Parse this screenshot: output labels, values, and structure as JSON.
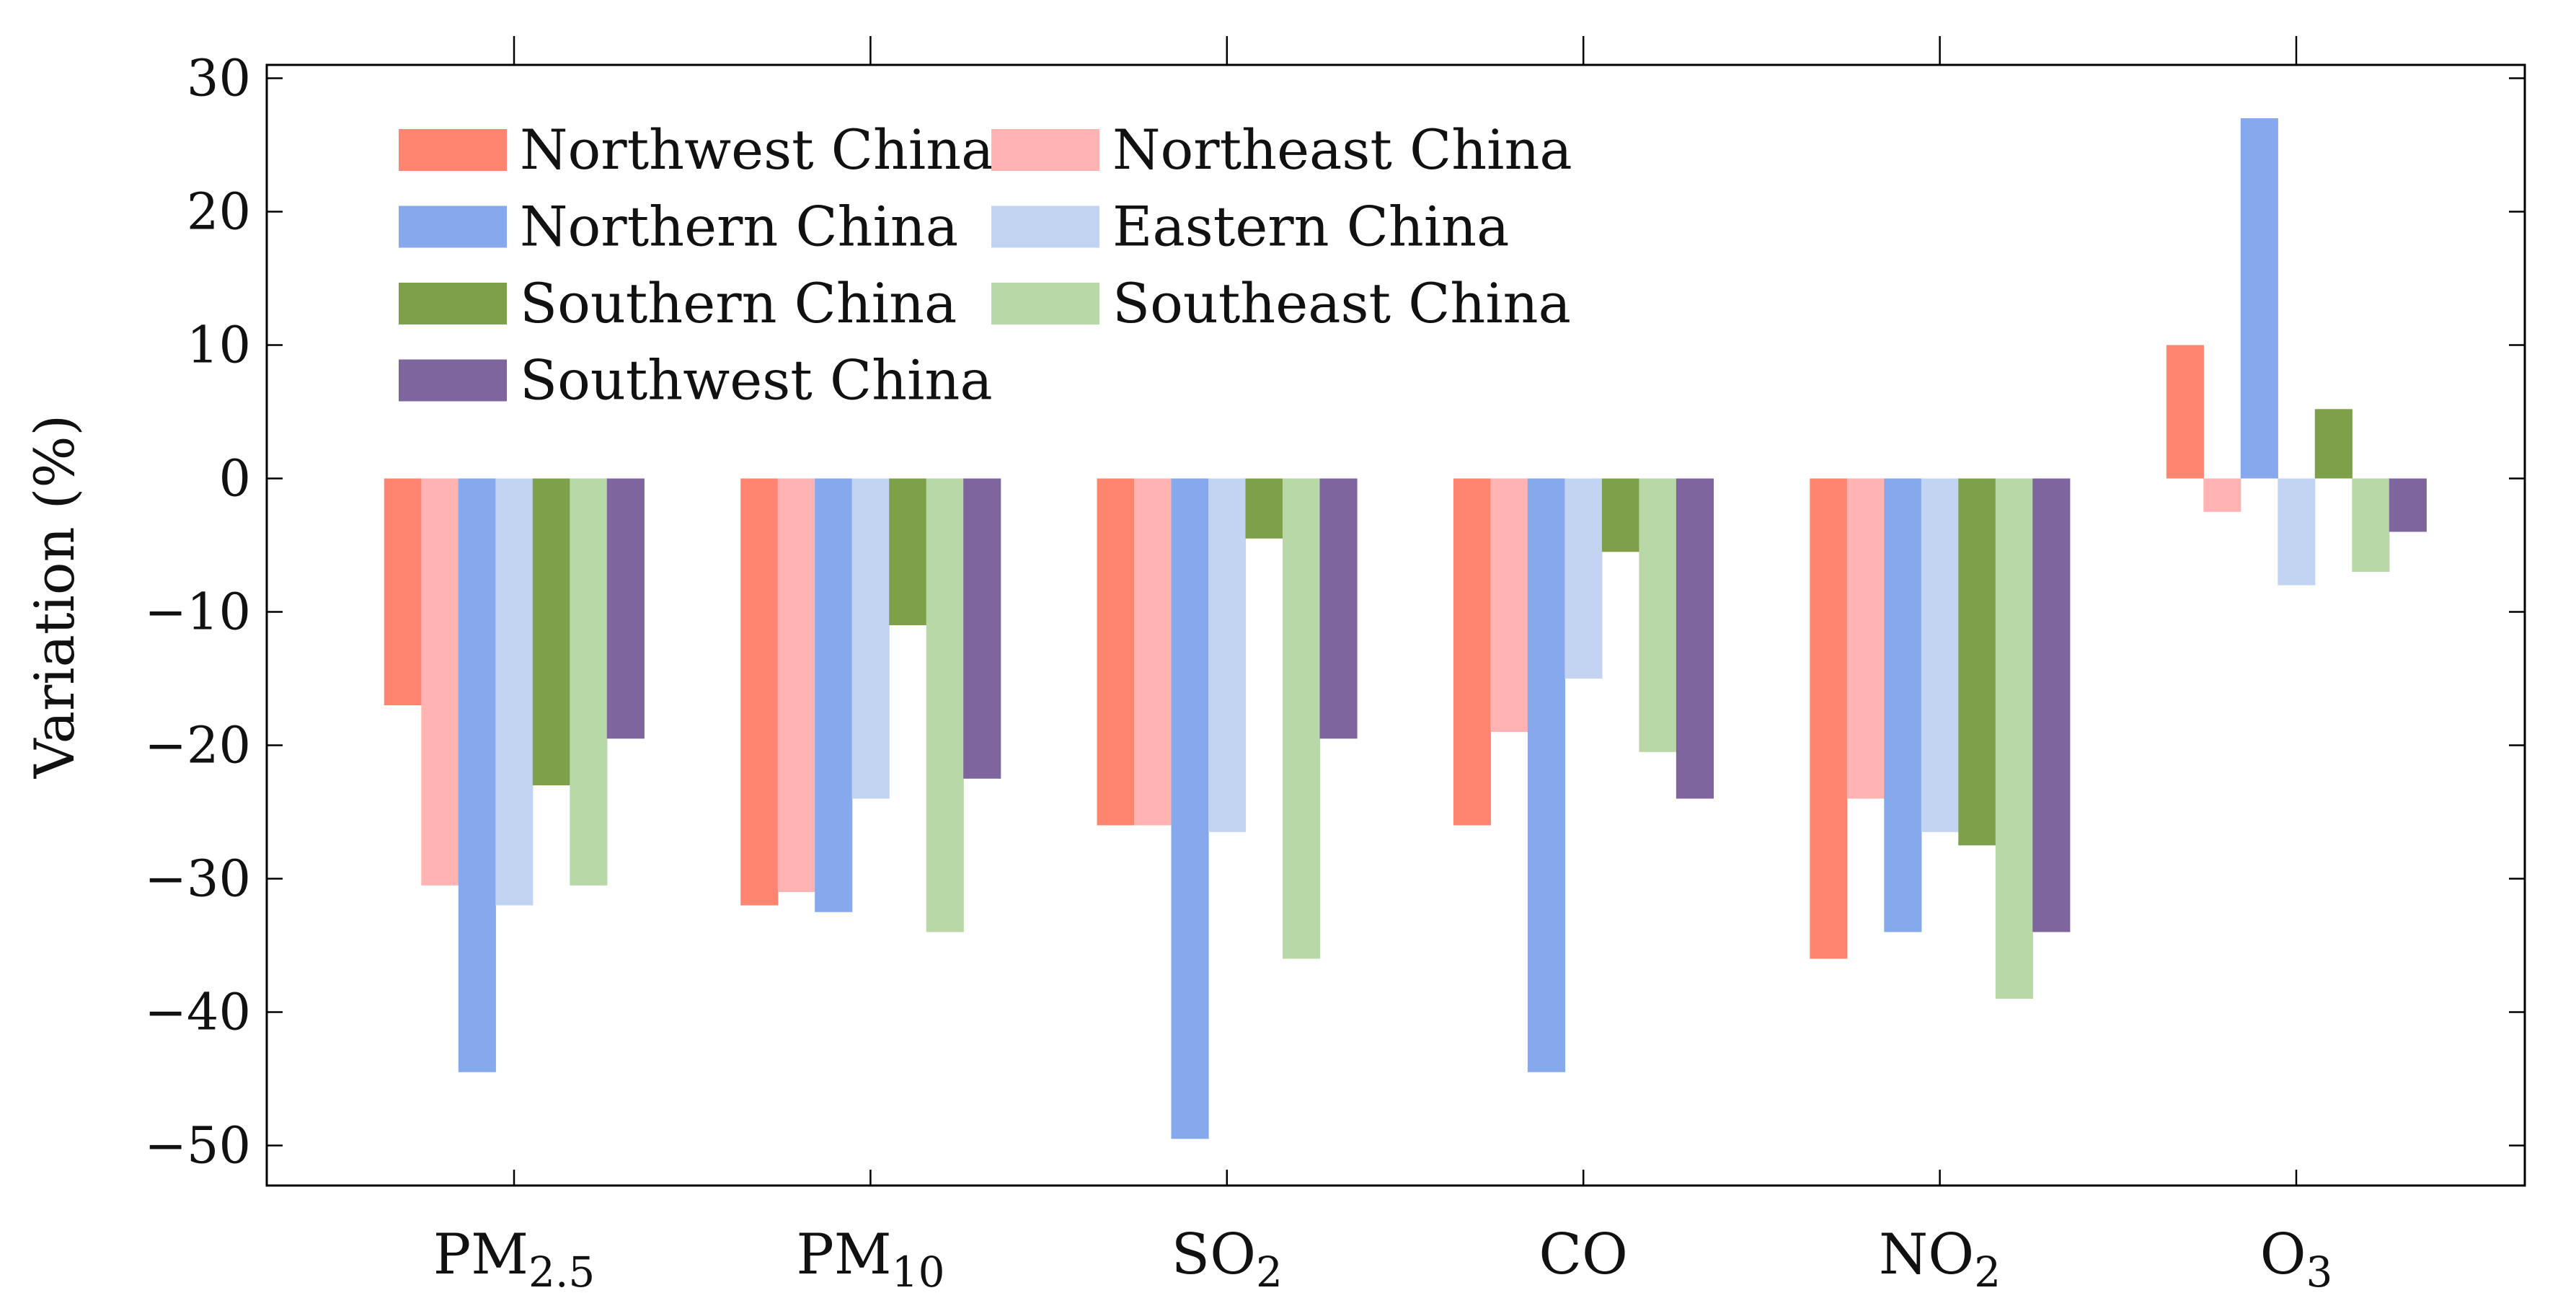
{
  "chart_data": {
    "type": "bar",
    "title": "",
    "xlabel": "",
    "ylabel": "Variation (%)",
    "ylim": [
      -53,
      31
    ],
    "yticks": [
      30,
      20,
      10,
      0,
      -10,
      -20,
      -30,
      -40,
      -50
    ],
    "ytick_labels": [
      "30",
      "20",
      "10",
      "0",
      "−10",
      "−20",
      "−30",
      "−40",
      "−50"
    ],
    "categories": [
      {
        "base": "PM",
        "sub": "2.5"
      },
      {
        "base": "PM",
        "sub": "10"
      },
      {
        "base": "SO",
        "sub": "2"
      },
      {
        "base": "CO",
        "sub": ""
      },
      {
        "base": "NO",
        "sub": "2"
      },
      {
        "base": "O",
        "sub": "3"
      }
    ],
    "legend_position": "top-left",
    "series": [
      {
        "name": "Northwest China",
        "color": "#ff8570",
        "values": [
          -17,
          -32,
          -26,
          -26,
          -36,
          10
        ]
      },
      {
        "name": "Northeast China",
        "color": "#ffb3b3",
        "values": [
          -30.5,
          -31,
          -26,
          -19,
          -24,
          -2.5
        ]
      },
      {
        "name": "Northern China",
        "color": "#86a9ee",
        "values": [
          -44.5,
          -32.5,
          -49.5,
          -44.5,
          -34,
          27
        ]
      },
      {
        "name": "Eastern China",
        "color": "#c3d4f3",
        "values": [
          -32,
          -24,
          -26.5,
          -15,
          -26.5,
          -8
        ]
      },
      {
        "name": "Southern China",
        "color": "#7ea04a",
        "values": [
          -23,
          -11,
          -4.5,
          -5.5,
          -27.5,
          5.2
        ]
      },
      {
        "name": "Southeast China",
        "color": "#b8d8a8",
        "values": [
          -30.5,
          -34,
          -36,
          -20.5,
          -39,
          -7
        ]
      },
      {
        "name": "Southwest China",
        "color": "#7e659e",
        "values": [
          -19.5,
          -22.5,
          -19.5,
          -24,
          -34,
          -4
        ]
      }
    ]
  }
}
